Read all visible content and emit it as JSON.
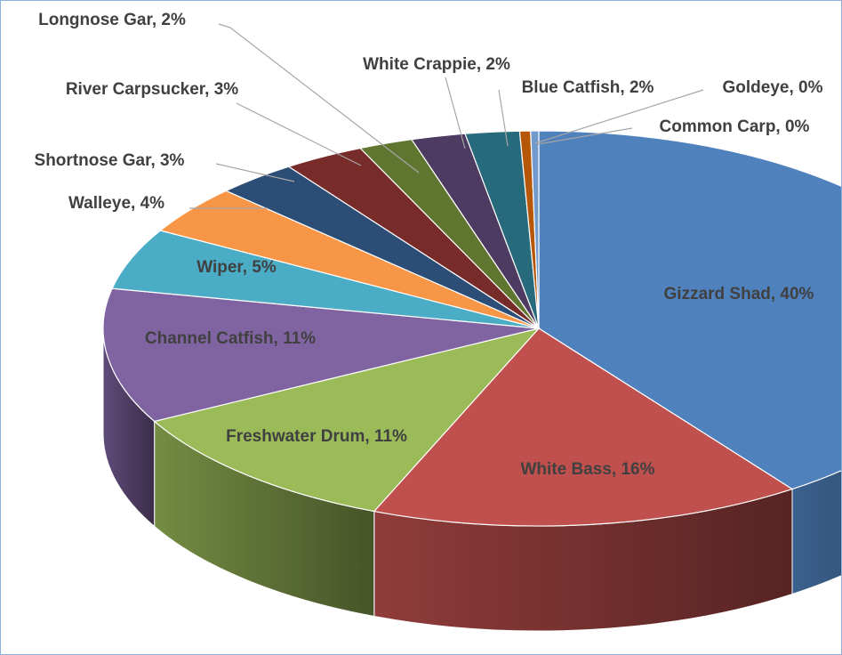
{
  "chart_data": {
    "type": "pie",
    "categories": [
      "Gizzard Shad",
      "White Bass",
      "Freshwater Drum",
      "Channel Catfish",
      "Wiper",
      "Walleye",
      "Shortnose Gar",
      "River Carpsucker",
      "Longnose Gar",
      "White Crappie",
      "Blue Catfish",
      "Goldeye",
      "Common Carp"
    ],
    "values": [
      40,
      16,
      11,
      11,
      5,
      4,
      3,
      3,
      2,
      2,
      2,
      0.4,
      0.3
    ],
    "value_labels": [
      "Gizzard Shad, 40%",
      "White Bass, 16%",
      "Freshwater Drum, 11%",
      "Channel Catfish, 11%",
      "Wiper, 5%",
      "Walleye, 4%",
      "Shortnose Gar, 3%",
      "River Carpsucker, 3%",
      "Longnose Gar, 2%",
      "White Crappie, 2%",
      "Blue Catfish, 2%",
      "Goldeye, 0%",
      "Common Carp, 0%"
    ],
    "colors": [
      "#4f81bd",
      "#c0504d",
      "#9bbb59",
      "#8064a2",
      "#4bacc6",
      "#f79646",
      "#2c4d75",
      "#772c2a",
      "#5f7530",
      "#4d3b62",
      "#276a7c",
      "#b65708",
      "#729aca"
    ]
  }
}
